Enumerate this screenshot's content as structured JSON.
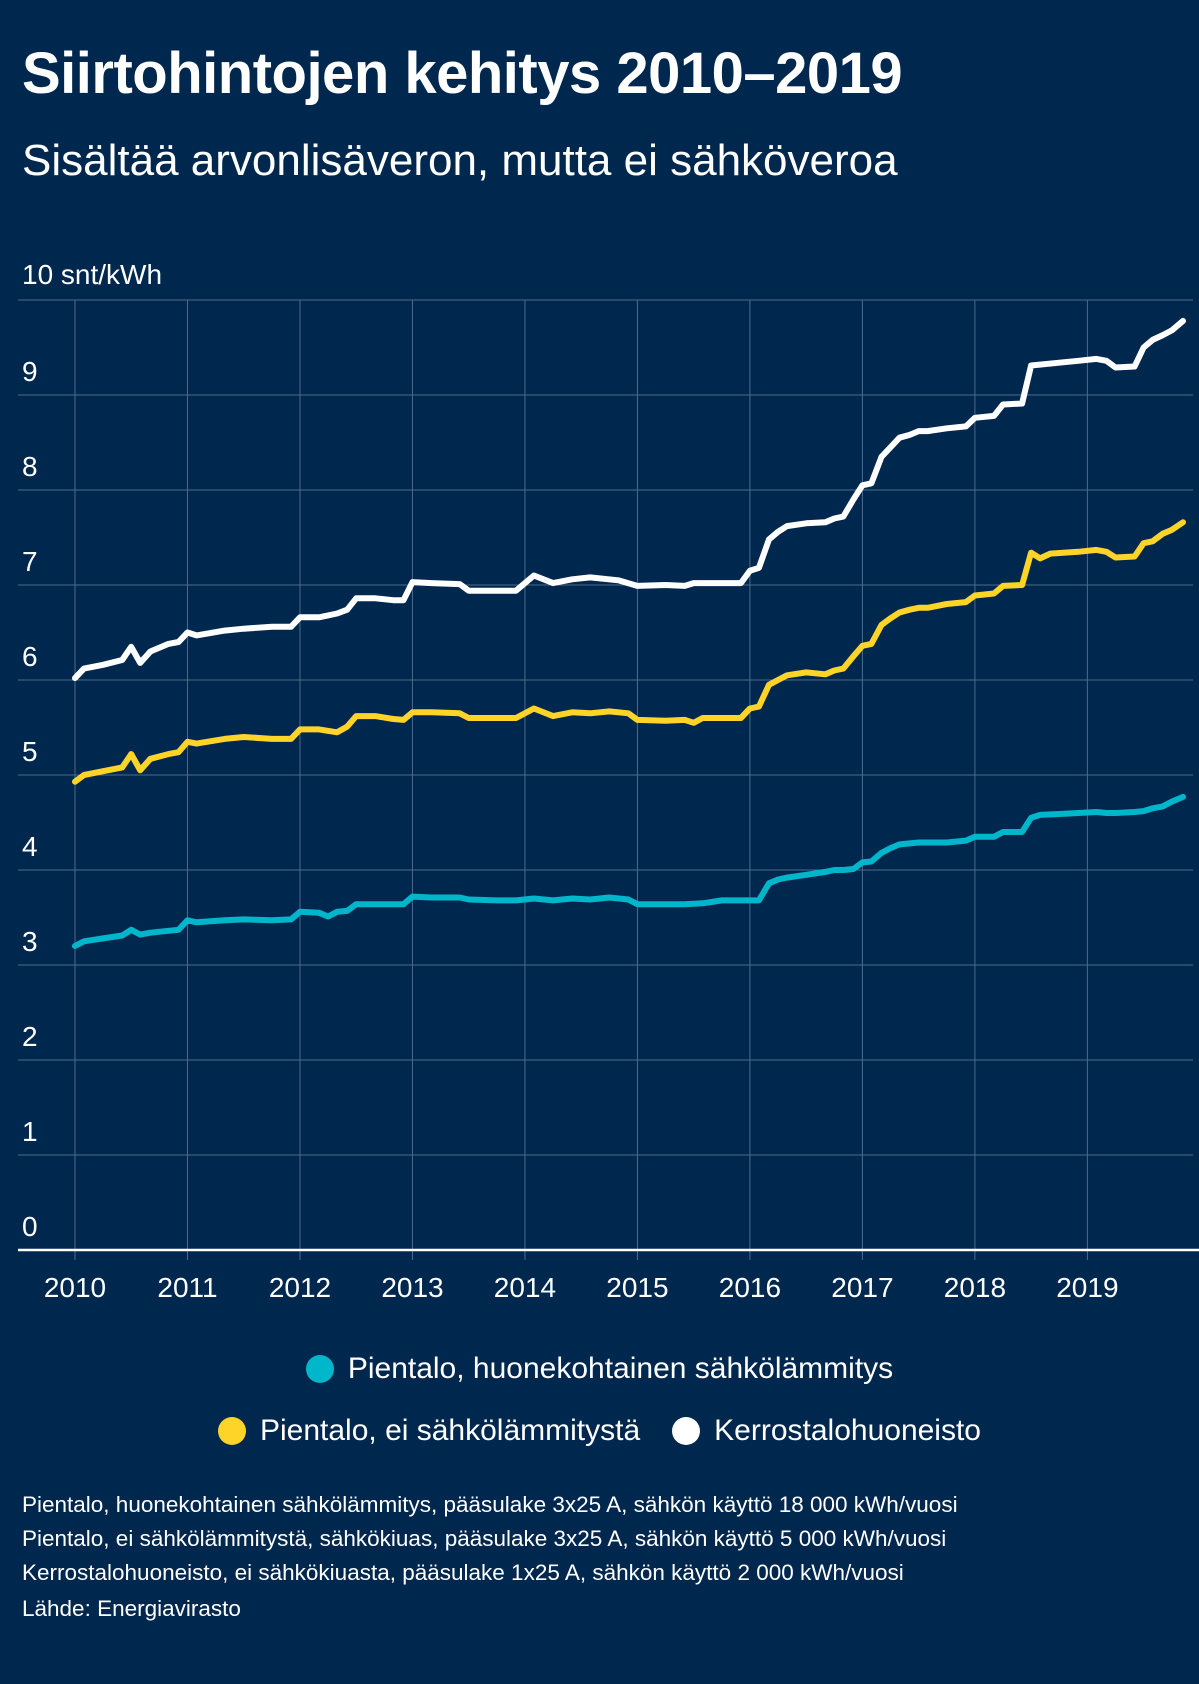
{
  "title": "Siirtohintojen kehitys 2010–2019",
  "subtitle": "Sisältää arvonlisäveron, mutta ei sähköveroa",
  "legend": [
    {
      "label": "Pientalo, huonekohtainen sähkölämmitys",
      "color": "#00b6cb"
    },
    {
      "label": "Pientalo, ei sähkölämmitystä",
      "color": "#ffd429"
    },
    {
      "label": "Kerrostalohuoneisto",
      "color": "#ffffff"
    }
  ],
  "notes": [
    "Pientalo, huonekohtainen sähkölämmitys, pääsulake 3x25 A, sähkön käyttö 18 000 kWh/vuosi",
    "Pientalo, ei sähkölämmitystä, sähkökiuas, pääsulake 3x25 A, sähkön käyttö 5 000 kWh/vuosi",
    "Kerrostalohuoneisto, ei sähkökiuasta, pääsulake 1x25 A, sähkön käyttö 2 000 kWh/vuosi"
  ],
  "source": "Lähde: Energiavirasto",
  "chart_data": {
    "type": "line",
    "title": "Siirtohintojen kehitys 2010–2019",
    "subtitle": "Sisältää arvonlisäveron, mutta ei sähköveroa",
    "ylabel": "10 snt/kWh",
    "ylim": [
      0,
      10
    ],
    "yticks": [
      "0",
      "1",
      "2",
      "3",
      "4",
      "5",
      "6",
      "7",
      "8",
      "9"
    ],
    "xlim": [
      2010,
      2019.85
    ],
    "xticks": [
      "2010",
      "2011",
      "2012",
      "2013",
      "2014",
      "2015",
      "2016",
      "2017",
      "2018",
      "2019"
    ],
    "grid": true,
    "legend_position": "bottom",
    "series": [
      {
        "name": "Kerrostalohuoneisto",
        "color": "#ffffff",
        "points": [
          [
            2010.0,
            6.02
          ],
          [
            2010.08,
            6.12
          ],
          [
            2010.25,
            6.16
          ],
          [
            2010.42,
            6.21
          ],
          [
            2010.5,
            6.35
          ],
          [
            2010.58,
            6.18
          ],
          [
            2010.67,
            6.3
          ],
          [
            2010.83,
            6.38
          ],
          [
            2010.92,
            6.4
          ],
          [
            2011.0,
            6.5
          ],
          [
            2011.08,
            6.47
          ],
          [
            2011.33,
            6.52
          ],
          [
            2011.5,
            6.54
          ],
          [
            2011.75,
            6.56
          ],
          [
            2011.92,
            6.56
          ],
          [
            2012.0,
            6.66
          ],
          [
            2012.17,
            6.66
          ],
          [
            2012.33,
            6.7
          ],
          [
            2012.42,
            6.74
          ],
          [
            2012.5,
            6.86
          ],
          [
            2012.67,
            6.86
          ],
          [
            2012.83,
            6.84
          ],
          [
            2012.92,
            6.84
          ],
          [
            2013.0,
            7.03
          ],
          [
            2013.17,
            7.02
          ],
          [
            2013.42,
            7.01
          ],
          [
            2013.5,
            6.94
          ],
          [
            2013.75,
            6.94
          ],
          [
            2013.92,
            6.94
          ],
          [
            2014.08,
            7.1
          ],
          [
            2014.25,
            7.02
          ],
          [
            2014.42,
            7.06
          ],
          [
            2014.58,
            7.08
          ],
          [
            2014.83,
            7.05
          ],
          [
            2015.0,
            6.99
          ],
          [
            2015.25,
            7.0
          ],
          [
            2015.42,
            6.99
          ],
          [
            2015.5,
            7.02
          ],
          [
            2015.75,
            7.02
          ],
          [
            2015.92,
            7.02
          ],
          [
            2016.0,
            7.15
          ],
          [
            2016.08,
            7.18
          ],
          [
            2016.17,
            7.48
          ],
          [
            2016.25,
            7.56
          ],
          [
            2016.33,
            7.62
          ],
          [
            2016.5,
            7.65
          ],
          [
            2016.67,
            7.66
          ],
          [
            2016.75,
            7.7
          ],
          [
            2016.83,
            7.72
          ],
          [
            2016.92,
            7.9
          ],
          [
            2017.0,
            8.05
          ],
          [
            2017.08,
            8.07
          ],
          [
            2017.17,
            8.35
          ],
          [
            2017.25,
            8.45
          ],
          [
            2017.33,
            8.55
          ],
          [
            2017.42,
            8.58
          ],
          [
            2017.5,
            8.62
          ],
          [
            2017.58,
            8.62
          ],
          [
            2017.75,
            8.65
          ],
          [
            2017.92,
            8.67
          ],
          [
            2018.0,
            8.76
          ],
          [
            2018.17,
            8.78
          ],
          [
            2018.25,
            8.9
          ],
          [
            2018.42,
            8.91
          ],
          [
            2018.5,
            9.31
          ],
          [
            2018.75,
            9.34
          ],
          [
            2018.92,
            9.36
          ],
          [
            2019.08,
            9.38
          ],
          [
            2019.17,
            9.36
          ],
          [
            2019.25,
            9.29
          ],
          [
            2019.42,
            9.3
          ],
          [
            2019.5,
            9.5
          ],
          [
            2019.58,
            9.58
          ],
          [
            2019.67,
            9.63
          ],
          [
            2019.75,
            9.68
          ],
          [
            2019.85,
            9.78
          ]
        ]
      },
      {
        "name": "Pientalo, ei sähkölämmitystä",
        "color": "#ffd429",
        "points": [
          [
            2010.0,
            4.93
          ],
          [
            2010.08,
            5.0
          ],
          [
            2010.25,
            5.04
          ],
          [
            2010.42,
            5.08
          ],
          [
            2010.5,
            5.22
          ],
          [
            2010.58,
            5.05
          ],
          [
            2010.67,
            5.17
          ],
          [
            2010.83,
            5.22
          ],
          [
            2010.92,
            5.24
          ],
          [
            2011.0,
            5.35
          ],
          [
            2011.08,
            5.33
          ],
          [
            2011.33,
            5.38
          ],
          [
            2011.5,
            5.4
          ],
          [
            2011.75,
            5.38
          ],
          [
            2011.92,
            5.38
          ],
          [
            2012.0,
            5.48
          ],
          [
            2012.17,
            5.48
          ],
          [
            2012.33,
            5.45
          ],
          [
            2012.42,
            5.51
          ],
          [
            2012.5,
            5.62
          ],
          [
            2012.67,
            5.62
          ],
          [
            2012.83,
            5.59
          ],
          [
            2012.92,
            5.58
          ],
          [
            2013.0,
            5.66
          ],
          [
            2013.17,
            5.66
          ],
          [
            2013.42,
            5.65
          ],
          [
            2013.5,
            5.6
          ],
          [
            2013.75,
            5.6
          ],
          [
            2013.92,
            5.6
          ],
          [
            2014.08,
            5.7
          ],
          [
            2014.25,
            5.62
          ],
          [
            2014.42,
            5.66
          ],
          [
            2014.58,
            5.65
          ],
          [
            2014.75,
            5.67
          ],
          [
            2014.92,
            5.65
          ],
          [
            2015.0,
            5.58
          ],
          [
            2015.25,
            5.57
          ],
          [
            2015.42,
            5.58
          ],
          [
            2015.5,
            5.55
          ],
          [
            2015.58,
            5.6
          ],
          [
            2015.75,
            5.6
          ],
          [
            2015.92,
            5.6
          ],
          [
            2016.0,
            5.7
          ],
          [
            2016.08,
            5.72
          ],
          [
            2016.17,
            5.95
          ],
          [
            2016.25,
            6.0
          ],
          [
            2016.33,
            6.05
          ],
          [
            2016.5,
            6.08
          ],
          [
            2016.67,
            6.06
          ],
          [
            2016.75,
            6.1
          ],
          [
            2016.83,
            6.12
          ],
          [
            2016.92,
            6.25
          ],
          [
            2017.0,
            6.36
          ],
          [
            2017.08,
            6.38
          ],
          [
            2017.17,
            6.58
          ],
          [
            2017.25,
            6.65
          ],
          [
            2017.33,
            6.71
          ],
          [
            2017.42,
            6.74
          ],
          [
            2017.5,
            6.76
          ],
          [
            2017.58,
            6.76
          ],
          [
            2017.75,
            6.8
          ],
          [
            2017.92,
            6.82
          ],
          [
            2018.0,
            6.89
          ],
          [
            2018.17,
            6.91
          ],
          [
            2018.25,
            6.99
          ],
          [
            2018.42,
            7.0
          ],
          [
            2018.5,
            7.34
          ],
          [
            2018.58,
            7.28
          ],
          [
            2018.67,
            7.33
          ],
          [
            2018.92,
            7.35
          ],
          [
            2019.08,
            7.37
          ],
          [
            2019.17,
            7.35
          ],
          [
            2019.25,
            7.29
          ],
          [
            2019.42,
            7.3
          ],
          [
            2019.5,
            7.44
          ],
          [
            2019.58,
            7.46
          ],
          [
            2019.67,
            7.54
          ],
          [
            2019.75,
            7.58
          ],
          [
            2019.85,
            7.66
          ]
        ]
      },
      {
        "name": "Pientalo, huonekohtainen sähkölämmitys",
        "color": "#00b6cb",
        "points": [
          [
            2010.0,
            3.2
          ],
          [
            2010.08,
            3.25
          ],
          [
            2010.25,
            3.28
          ],
          [
            2010.42,
            3.31
          ],
          [
            2010.5,
            3.37
          ],
          [
            2010.58,
            3.32
          ],
          [
            2010.67,
            3.34
          ],
          [
            2010.83,
            3.36
          ],
          [
            2010.92,
            3.37
          ],
          [
            2011.0,
            3.47
          ],
          [
            2011.08,
            3.45
          ],
          [
            2011.33,
            3.47
          ],
          [
            2011.5,
            3.48
          ],
          [
            2011.75,
            3.47
          ],
          [
            2011.92,
            3.48
          ],
          [
            2012.0,
            3.56
          ],
          [
            2012.17,
            3.55
          ],
          [
            2012.25,
            3.51
          ],
          [
            2012.33,
            3.56
          ],
          [
            2012.42,
            3.57
          ],
          [
            2012.5,
            3.64
          ],
          [
            2012.67,
            3.64
          ],
          [
            2012.83,
            3.64
          ],
          [
            2012.92,
            3.64
          ],
          [
            2013.0,
            3.72
          ],
          [
            2013.17,
            3.71
          ],
          [
            2013.42,
            3.71
          ],
          [
            2013.5,
            3.69
          ],
          [
            2013.75,
            3.68
          ],
          [
            2013.92,
            3.68
          ],
          [
            2014.08,
            3.7
          ],
          [
            2014.25,
            3.68
          ],
          [
            2014.42,
            3.7
          ],
          [
            2014.58,
            3.69
          ],
          [
            2014.75,
            3.71
          ],
          [
            2014.92,
            3.69
          ],
          [
            2015.0,
            3.64
          ],
          [
            2015.25,
            3.64
          ],
          [
            2015.42,
            3.64
          ],
          [
            2015.58,
            3.65
          ],
          [
            2015.75,
            3.68
          ],
          [
            2015.92,
            3.68
          ],
          [
            2016.0,
            3.68
          ],
          [
            2016.08,
            3.68
          ],
          [
            2016.17,
            3.86
          ],
          [
            2016.25,
            3.9
          ],
          [
            2016.33,
            3.92
          ],
          [
            2016.5,
            3.95
          ],
          [
            2016.67,
            3.98
          ],
          [
            2016.75,
            4.0
          ],
          [
            2016.83,
            4.0
          ],
          [
            2016.92,
            4.01
          ],
          [
            2017.0,
            4.08
          ],
          [
            2017.08,
            4.09
          ],
          [
            2017.17,
            4.18
          ],
          [
            2017.25,
            4.23
          ],
          [
            2017.33,
            4.27
          ],
          [
            2017.42,
            4.28
          ],
          [
            2017.5,
            4.29
          ],
          [
            2017.58,
            4.29
          ],
          [
            2017.75,
            4.29
          ],
          [
            2017.92,
            4.31
          ],
          [
            2018.0,
            4.35
          ],
          [
            2018.17,
            4.35
          ],
          [
            2018.25,
            4.4
          ],
          [
            2018.42,
            4.4
          ],
          [
            2018.5,
            4.55
          ],
          [
            2018.58,
            4.58
          ],
          [
            2018.75,
            4.59
          ],
          [
            2018.92,
            4.6
          ],
          [
            2019.08,
            4.61
          ],
          [
            2019.17,
            4.6
          ],
          [
            2019.25,
            4.6
          ],
          [
            2019.42,
            4.61
          ],
          [
            2019.5,
            4.62
          ],
          [
            2019.58,
            4.65
          ],
          [
            2019.67,
            4.67
          ],
          [
            2019.75,
            4.72
          ],
          [
            2019.85,
            4.77
          ]
        ]
      }
    ]
  }
}
